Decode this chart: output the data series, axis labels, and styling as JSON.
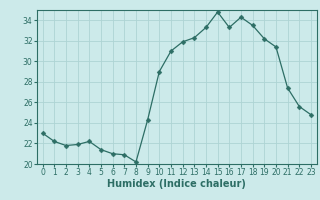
{
  "x": [
    0,
    1,
    2,
    3,
    4,
    5,
    6,
    7,
    8,
    9,
    10,
    11,
    12,
    13,
    14,
    15,
    16,
    17,
    18,
    19,
    20,
    21,
    22,
    23
  ],
  "y": [
    23.0,
    22.2,
    21.8,
    21.9,
    22.2,
    21.4,
    21.0,
    20.9,
    20.2,
    24.3,
    29.0,
    31.0,
    31.9,
    32.3,
    33.3,
    34.8,
    33.3,
    34.3,
    33.5,
    32.2,
    31.4,
    27.4,
    25.6,
    24.8
  ],
  "line_color": "#2d6e65",
  "marker": "D",
  "marker_size": 2.5,
  "bg_color": "#cceaea",
  "grid_color": "#aed4d4",
  "xlabel": "Humidex (Indice chaleur)",
  "ylim": [
    20,
    35
  ],
  "xlim": [
    -0.5,
    23.5
  ],
  "yticks": [
    20,
    22,
    24,
    26,
    28,
    30,
    32,
    34
  ],
  "xticks": [
    0,
    1,
    2,
    3,
    4,
    5,
    6,
    7,
    8,
    9,
    10,
    11,
    12,
    13,
    14,
    15,
    16,
    17,
    18,
    19,
    20,
    21,
    22,
    23
  ],
  "tick_fontsize": 5.5,
  "xlabel_fontsize": 7.0
}
